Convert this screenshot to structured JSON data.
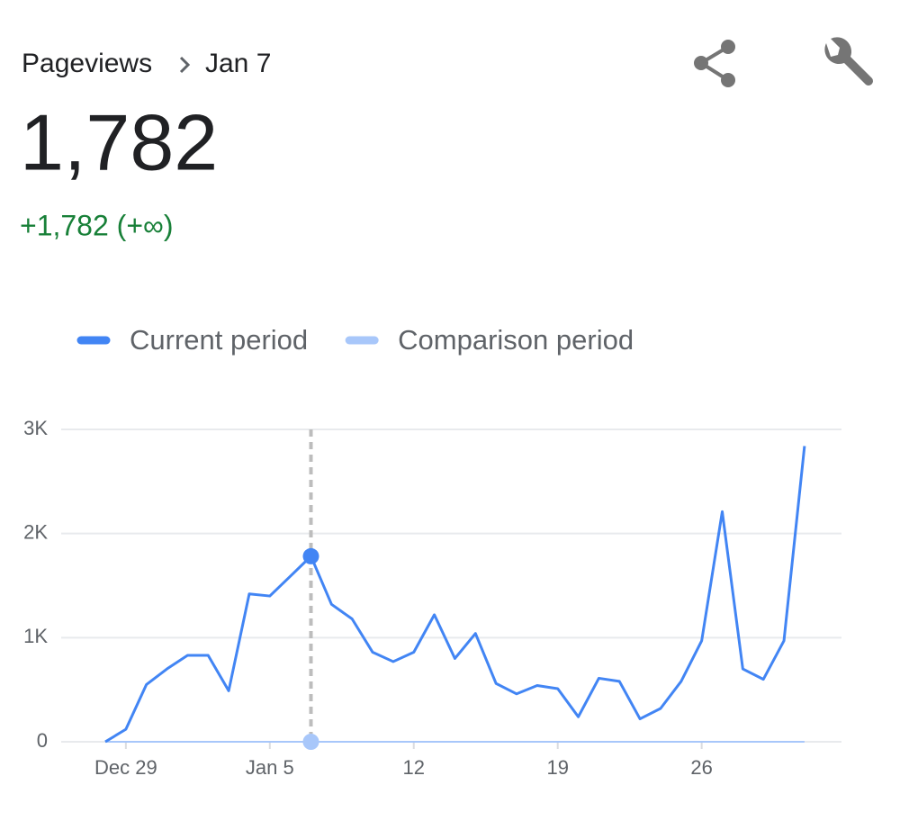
{
  "header": {
    "metric": "Pageviews",
    "date": "Jan 7",
    "value": "1,782",
    "change": "+1,782 (+∞)"
  },
  "chart_data": {
    "type": "line",
    "categories": [
      null,
      "Dec 29",
      null,
      null,
      null,
      null,
      null,
      null,
      "Jan 5",
      null,
      null,
      null,
      null,
      null,
      null,
      "12",
      null,
      null,
      null,
      null,
      null,
      null,
      "19",
      null,
      null,
      null,
      null,
      null,
      null,
      "26",
      null,
      null,
      null,
      null,
      null
    ],
    "series": [
      {
        "name": "Current period",
        "color": "#4285f4",
        "values": [
          0,
          120,
          550,
          700,
          830,
          830,
          490,
          1420,
          1400,
          1590,
          1782,
          1320,
          1180,
          860,
          770,
          860,
          1220,
          800,
          1040,
          560,
          460,
          540,
          510,
          240,
          610,
          580,
          220,
          320,
          580,
          970,
          2210,
          700,
          600,
          970,
          2840
        ]
      },
      {
        "name": "Comparison period",
        "color": "#a8c7fa",
        "values": [
          0,
          0,
          0,
          0,
          0,
          0,
          0,
          0,
          0,
          0,
          0,
          0,
          0,
          0,
          0,
          0,
          0,
          0,
          0,
          0,
          0,
          0,
          0,
          0,
          0,
          0,
          0,
          0,
          0,
          0,
          0,
          0,
          0,
          0,
          0
        ]
      }
    ],
    "selected_index": 10,
    "ylim": [
      0,
      3000
    ],
    "yticks": [
      0,
      {
        "value": 1000,
        "label": "1K"
      },
      {
        "value": 2000,
        "label": "2K"
      },
      {
        "value": 3000,
        "label": "3K"
      }
    ],
    "grid": true
  }
}
